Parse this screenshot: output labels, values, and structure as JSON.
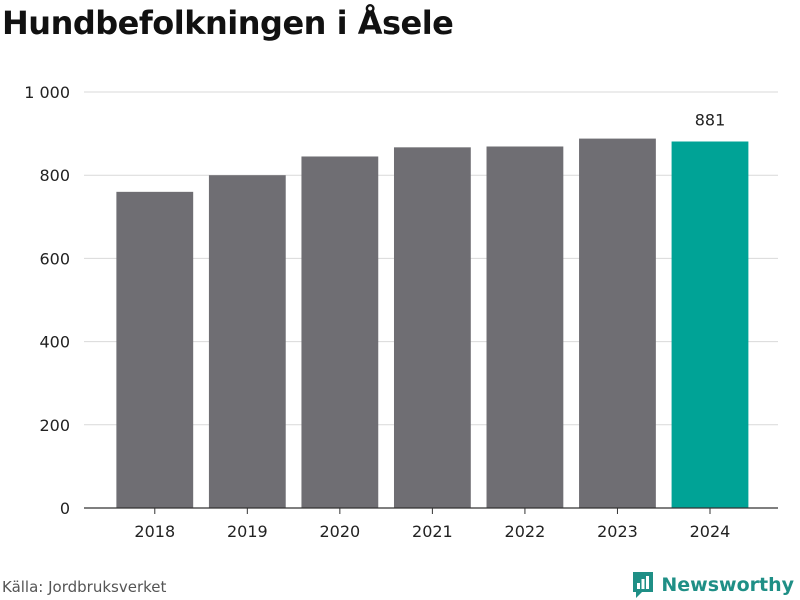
{
  "chart_data": {
    "type": "bar",
    "title": "Hundbefolkningen i Åsele",
    "categories": [
      "2018",
      "2019",
      "2020",
      "2021",
      "2022",
      "2023",
      "2024"
    ],
    "values": [
      760,
      800,
      845,
      867,
      869,
      888,
      881
    ],
    "ylim": [
      0,
      1000
    ],
    "yticks": [
      0,
      200,
      400,
      600,
      800,
      1000
    ],
    "ytick_labels": [
      "0",
      "200",
      "400",
      "600",
      "800",
      "1 000"
    ],
    "xlabel": "",
    "ylabel": "",
    "grid": true,
    "bar_color": "#6f6e73",
    "highlight_color": "#00a396",
    "highlight_index": 6,
    "annotations": [
      {
        "category": "2024",
        "text": "881"
      }
    ]
  },
  "source": "Källa: Jordbruksverket",
  "brand": {
    "name": "Newsworthy",
    "icon": "newsworthy-logo-icon",
    "color": "#1f8f86"
  }
}
